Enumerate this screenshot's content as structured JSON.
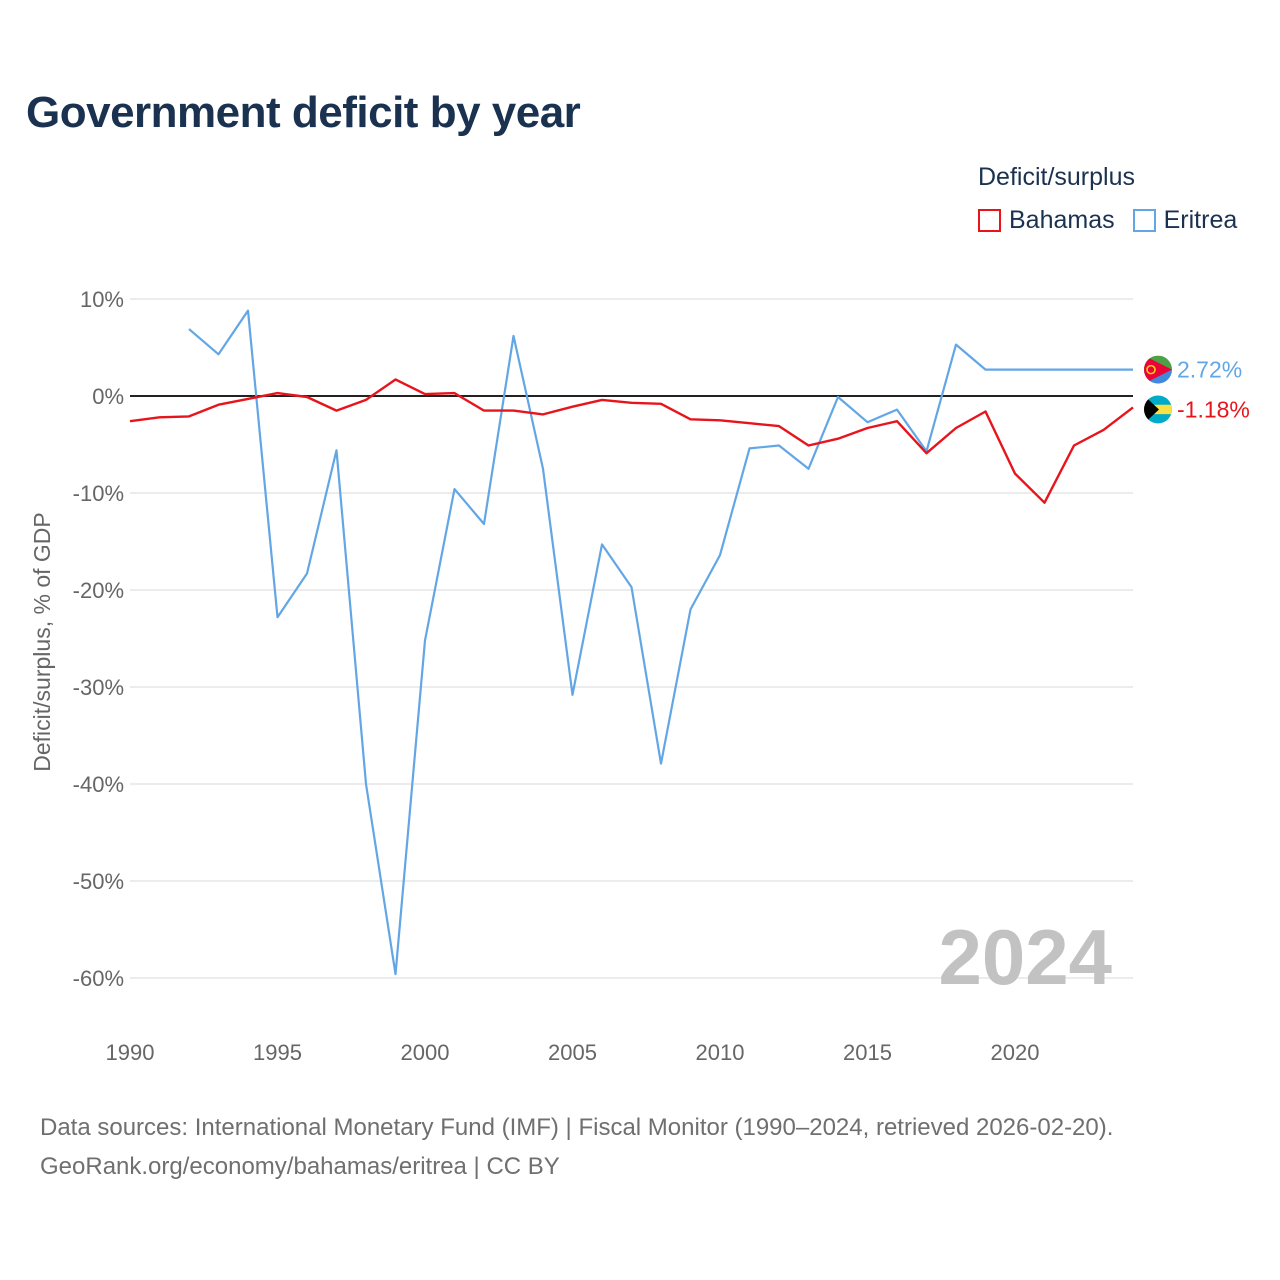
{
  "header": {
    "title": "Government deficit by year"
  },
  "legend": {
    "title": "Deficit/surplus",
    "items": [
      {
        "label": "Bahamas",
        "color": "#e8141c"
      },
      {
        "label": "Eritrea",
        "color": "#62a6e6"
      }
    ]
  },
  "footer": {
    "line1": "Data sources: International Monetary Fund (IMF) | Fiscal Monitor (1990–2024, retrieved 2026-02-20).",
    "line2": "GeoRank.org/economy/bahamas/eritrea | CC BY"
  },
  "chart_data": {
    "type": "line",
    "title": "Government deficit by year",
    "xlabel": "",
    "ylabel": "Deficit/surplus, % of GDP",
    "xlim": [
      1990,
      2024
    ],
    "ylim": [
      -63,
      10
    ],
    "x_ticks": [
      1990,
      1995,
      2000,
      2005,
      2010,
      2015,
      2020
    ],
    "x_tick_labels": [
      "1990",
      "1995",
      "2000",
      "2005",
      "2010",
      "2015",
      "2020"
    ],
    "y_ticks": [
      10,
      0,
      -10,
      -20,
      -30,
      -40,
      -50,
      -60
    ],
    "y_tick_labels": [
      "10%",
      "0%",
      "-10%",
      "-20%",
      "-30%",
      "-40%",
      "-50%",
      "-60%"
    ],
    "zero_line": true,
    "year_label": "2024",
    "series": [
      {
        "name": "Bahamas",
        "color": "#e8141c",
        "end_label": "-1.18%",
        "x": [
          1990,
          1991,
          1992,
          1993,
          1994,
          1995,
          1996,
          1997,
          1998,
          1999,
          2000,
          2001,
          2002,
          2003,
          2004,
          2005,
          2006,
          2007,
          2008,
          2009,
          2010,
          2011,
          2012,
          2013,
          2014,
          2015,
          2016,
          2017,
          2018,
          2019,
          2020,
          2021,
          2022,
          2023,
          2024
        ],
        "values": [
          -2.6,
          -2.2,
          -2.1,
          -0.9,
          -0.3,
          0.3,
          -0.1,
          -1.5,
          -0.4,
          1.7,
          0.2,
          0.3,
          -1.5,
          -1.5,
          -1.9,
          -1.1,
          -0.4,
          -0.7,
          -0.8,
          -2.4,
          -2.5,
          -2.8,
          -3.1,
          -5.1,
          -4.4,
          -3.3,
          -2.6,
          -5.9,
          -3.3,
          -1.6,
          -8.0,
          -11.0,
          -5.1,
          -3.5,
          -1.18
        ]
      },
      {
        "name": "Eritrea",
        "color": "#62a6e6",
        "end_label": "2.72%",
        "x": [
          1992,
          1993,
          1994,
          1995,
          1996,
          1997,
          1998,
          1999,
          2000,
          2001,
          2002,
          2003,
          2004,
          2005,
          2006,
          2007,
          2008,
          2009,
          2010,
          2011,
          2012,
          2013,
          2014,
          2015,
          2016,
          2017,
          2018,
          2019,
          2020,
          2021,
          2022,
          2023,
          2024
        ],
        "values": [
          6.9,
          4.3,
          8.8,
          -22.8,
          -18.3,
          -5.6,
          -40.0,
          -59.6,
          -25.2,
          -9.6,
          -13.2,
          6.2,
          -7.5,
          -30.8,
          -15.3,
          -19.7,
          -37.9,
          -22.0,
          -16.4,
          -5.4,
          -5.1,
          -7.5,
          -0.1,
          -2.7,
          -1.4,
          -5.7,
          5.3,
          2.72,
          2.72,
          2.72,
          2.72,
          2.72,
          2.72
        ]
      }
    ]
  }
}
